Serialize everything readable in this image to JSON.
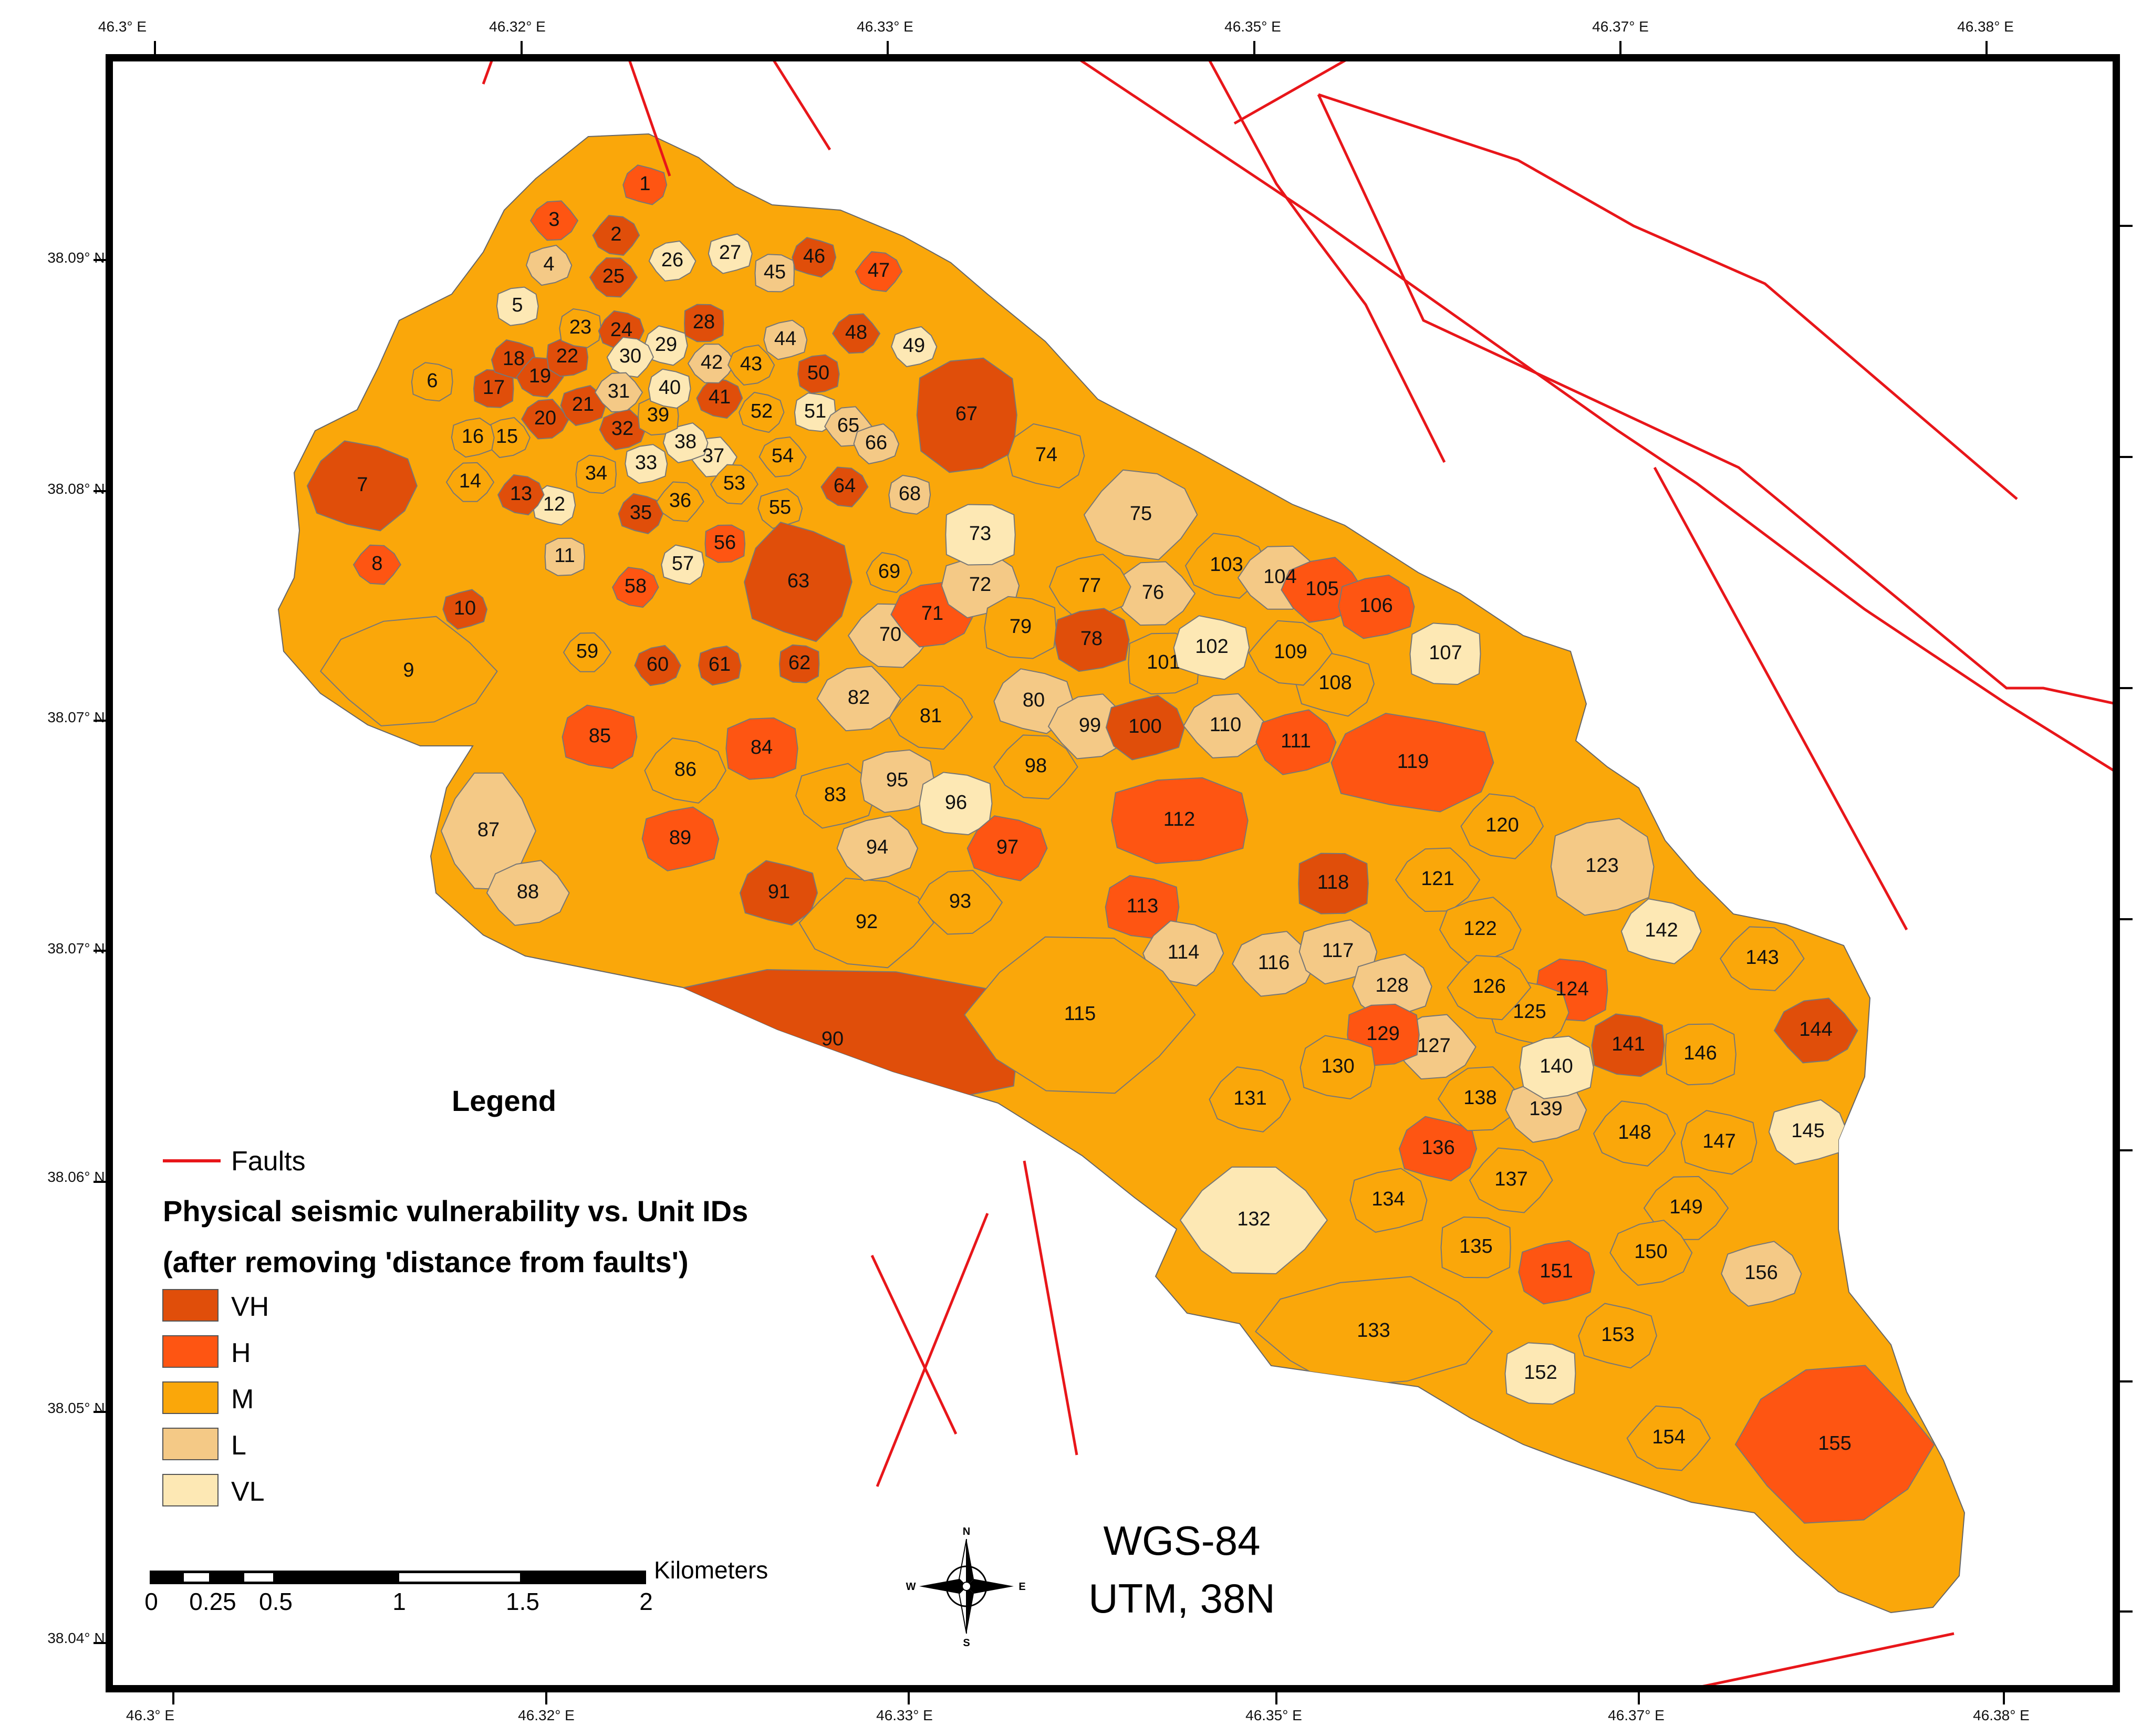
{
  "colors": {
    "VH": "#e04e0a",
    "H": "#fe5512",
    "M": "#faa70a",
    "L": "#f4c986",
    "VL": "#fde8b4",
    "fault": "#e8161a",
    "frame": "#000000"
  },
  "axes": {
    "top_lon": [
      "46.3° E",
      "46.32° E",
      "46.33° E",
      "46.35° E",
      "46.37° E",
      "46.38° E"
    ],
    "bottom_lon": [
      "46.3° E",
      "46.32° E",
      "46.33° E",
      "46.35° E",
      "46.37° E",
      "46.38° E"
    ],
    "left_lat": [
      "38.09° N",
      "38.08° N",
      "38.07° N",
      "38.07° N",
      "38.06° N",
      "38.05° N",
      "38.04° N"
    ]
  },
  "legend": {
    "title": "Legend",
    "faults_label": "Faults",
    "heading_line1": "Physical seismic vulnerability vs. Unit IDs",
    "heading_line2": "(after removing 'distance from faults')",
    "classes": [
      "VH",
      "H",
      "M",
      "L",
      "VL"
    ]
  },
  "projection": {
    "line1": "WGS-84",
    "line2": "UTM, 38N"
  },
  "scalebar": {
    "unit": "Kilometers",
    "labels": [
      "0",
      "0.25",
      "0.5",
      "1",
      "1.5",
      "2"
    ]
  },
  "compass": {
    "n": "N",
    "s": "S",
    "e": "E",
    "w": "W"
  },
  "units": [
    {
      "id": "1",
      "c": "H"
    },
    {
      "id": "2",
      "c": "VH"
    },
    {
      "id": "3",
      "c": "H"
    },
    {
      "id": "4",
      "c": "L"
    },
    {
      "id": "5",
      "c": "VL"
    },
    {
      "id": "6",
      "c": "M"
    },
    {
      "id": "7",
      "c": "VH"
    },
    {
      "id": "8",
      "c": "H"
    },
    {
      "id": "9",
      "c": "M"
    },
    {
      "id": "10",
      "c": "VH"
    },
    {
      "id": "11",
      "c": "L"
    },
    {
      "id": "12",
      "c": "VL"
    },
    {
      "id": "13",
      "c": "VH"
    },
    {
      "id": "14",
      "c": "M"
    },
    {
      "id": "15",
      "c": "M"
    },
    {
      "id": "16",
      "c": "M"
    },
    {
      "id": "17",
      "c": "VH"
    },
    {
      "id": "18",
      "c": "VH"
    },
    {
      "id": "19",
      "c": "VH"
    },
    {
      "id": "20",
      "c": "VH"
    },
    {
      "id": "21",
      "c": "VH"
    },
    {
      "id": "22",
      "c": "VH"
    },
    {
      "id": "23",
      "c": "M"
    },
    {
      "id": "24",
      "c": "VH"
    },
    {
      "id": "25",
      "c": "VH"
    },
    {
      "id": "26",
      "c": "VL"
    },
    {
      "id": "27",
      "c": "VL"
    },
    {
      "id": "28",
      "c": "VH"
    },
    {
      "id": "29",
      "c": "VL"
    },
    {
      "id": "30",
      "c": "VL"
    },
    {
      "id": "31",
      "c": "L"
    },
    {
      "id": "32",
      "c": "VH"
    },
    {
      "id": "33",
      "c": "VL"
    },
    {
      "id": "34",
      "c": "M"
    },
    {
      "id": "35",
      "c": "VH"
    },
    {
      "id": "36",
      "c": "M"
    },
    {
      "id": "37",
      "c": "VL"
    },
    {
      "id": "38",
      "c": "VL"
    },
    {
      "id": "39",
      "c": "M"
    },
    {
      "id": "40",
      "c": "VL"
    },
    {
      "id": "41",
      "c": "VH"
    },
    {
      "id": "42",
      "c": "L"
    },
    {
      "id": "43",
      "c": "M"
    },
    {
      "id": "44",
      "c": "L"
    },
    {
      "id": "45",
      "c": "L"
    },
    {
      "id": "46",
      "c": "VH"
    },
    {
      "id": "47",
      "c": "H"
    },
    {
      "id": "48",
      "c": "VH"
    },
    {
      "id": "49",
      "c": "VL"
    },
    {
      "id": "50",
      "c": "VH"
    },
    {
      "id": "51",
      "c": "VL"
    },
    {
      "id": "52",
      "c": "M"
    },
    {
      "id": "53",
      "c": "M"
    },
    {
      "id": "54",
      "c": "M"
    },
    {
      "id": "55",
      "c": "M"
    },
    {
      "id": "56",
      "c": "H"
    },
    {
      "id": "57",
      "c": "VL"
    },
    {
      "id": "58",
      "c": "H"
    },
    {
      "id": "59",
      "c": "M"
    },
    {
      "id": "60",
      "c": "VH"
    },
    {
      "id": "61",
      "c": "VH"
    },
    {
      "id": "62",
      "c": "VH"
    },
    {
      "id": "63",
      "c": "VH"
    },
    {
      "id": "64",
      "c": "VH"
    },
    {
      "id": "65",
      "c": "L"
    },
    {
      "id": "66",
      "c": "L"
    },
    {
      "id": "67",
      "c": "VH"
    },
    {
      "id": "68",
      "c": "L"
    },
    {
      "id": "69",
      "c": "M"
    },
    {
      "id": "70",
      "c": "L"
    },
    {
      "id": "71",
      "c": "H"
    },
    {
      "id": "72",
      "c": "L"
    },
    {
      "id": "73",
      "c": "VL"
    },
    {
      "id": "74",
      "c": "M"
    },
    {
      "id": "75",
      "c": "L"
    },
    {
      "id": "76",
      "c": "L"
    },
    {
      "id": "77",
      "c": "M"
    },
    {
      "id": "78",
      "c": "VH"
    },
    {
      "id": "79",
      "c": "M"
    },
    {
      "id": "80",
      "c": "L"
    },
    {
      "id": "81",
      "c": "M"
    },
    {
      "id": "82",
      "c": "L"
    },
    {
      "id": "83",
      "c": "M"
    },
    {
      "id": "84",
      "c": "H"
    },
    {
      "id": "85",
      "c": "H"
    },
    {
      "id": "86",
      "c": "M"
    },
    {
      "id": "87",
      "c": "L"
    },
    {
      "id": "88",
      "c": "L"
    },
    {
      "id": "89",
      "c": "H"
    },
    {
      "id": "90",
      "c": "VH"
    },
    {
      "id": "91",
      "c": "VH"
    },
    {
      "id": "92",
      "c": "M"
    },
    {
      "id": "93",
      "c": "M"
    },
    {
      "id": "94",
      "c": "L"
    },
    {
      "id": "95",
      "c": "L"
    },
    {
      "id": "96",
      "c": "VL"
    },
    {
      "id": "97",
      "c": "H"
    },
    {
      "id": "98",
      "c": "M"
    },
    {
      "id": "99",
      "c": "L"
    },
    {
      "id": "100",
      "c": "VH"
    },
    {
      "id": "101",
      "c": "M"
    },
    {
      "id": "102",
      "c": "VL"
    },
    {
      "id": "103",
      "c": "M"
    },
    {
      "id": "104",
      "c": "L"
    },
    {
      "id": "105",
      "c": "H"
    },
    {
      "id": "106",
      "c": "H"
    },
    {
      "id": "107",
      "c": "VL"
    },
    {
      "id": "108",
      "c": "M"
    },
    {
      "id": "109",
      "c": "M"
    },
    {
      "id": "110",
      "c": "L"
    },
    {
      "id": "111",
      "c": "H"
    },
    {
      "id": "112",
      "c": "H"
    },
    {
      "id": "113",
      "c": "H"
    },
    {
      "id": "114",
      "c": "L"
    },
    {
      "id": "115",
      "c": "M"
    },
    {
      "id": "116",
      "c": "L"
    },
    {
      "id": "117",
      "c": "L"
    },
    {
      "id": "118",
      "c": "VH"
    },
    {
      "id": "119",
      "c": "H"
    },
    {
      "id": "120",
      "c": "M"
    },
    {
      "id": "121",
      "c": "M"
    },
    {
      "id": "122",
      "c": "M"
    },
    {
      "id": "123",
      "c": "L"
    },
    {
      "id": "124",
      "c": "H"
    },
    {
      "id": "125",
      "c": "M"
    },
    {
      "id": "126",
      "c": "M"
    },
    {
      "id": "127",
      "c": "L"
    },
    {
      "id": "128",
      "c": "L"
    },
    {
      "id": "129",
      "c": "H"
    },
    {
      "id": "130",
      "c": "M"
    },
    {
      "id": "131",
      "c": "M"
    },
    {
      "id": "132",
      "c": "VL"
    },
    {
      "id": "133",
      "c": "M"
    },
    {
      "id": "134",
      "c": "M"
    },
    {
      "id": "135",
      "c": "M"
    },
    {
      "id": "136",
      "c": "H"
    },
    {
      "id": "137",
      "c": "M"
    },
    {
      "id": "138",
      "c": "M"
    },
    {
      "id": "139",
      "c": "L"
    },
    {
      "id": "140",
      "c": "VL"
    },
    {
      "id": "141",
      "c": "VH"
    },
    {
      "id": "142",
      "c": "VL"
    },
    {
      "id": "143",
      "c": "M"
    },
    {
      "id": "144",
      "c": "VH"
    },
    {
      "id": "145",
      "c": "VL"
    },
    {
      "id": "146",
      "c": "M"
    },
    {
      "id": "147",
      "c": "M"
    },
    {
      "id": "148",
      "c": "M"
    },
    {
      "id": "149",
      "c": "M"
    },
    {
      "id": "150",
      "c": "M"
    },
    {
      "id": "151",
      "c": "H"
    },
    {
      "id": "152",
      "c": "VL"
    },
    {
      "id": "153",
      "c": "M"
    },
    {
      "id": "154",
      "c": "M"
    },
    {
      "id": "155",
      "c": "H"
    },
    {
      "id": "156",
      "c": "L"
    }
  ]
}
